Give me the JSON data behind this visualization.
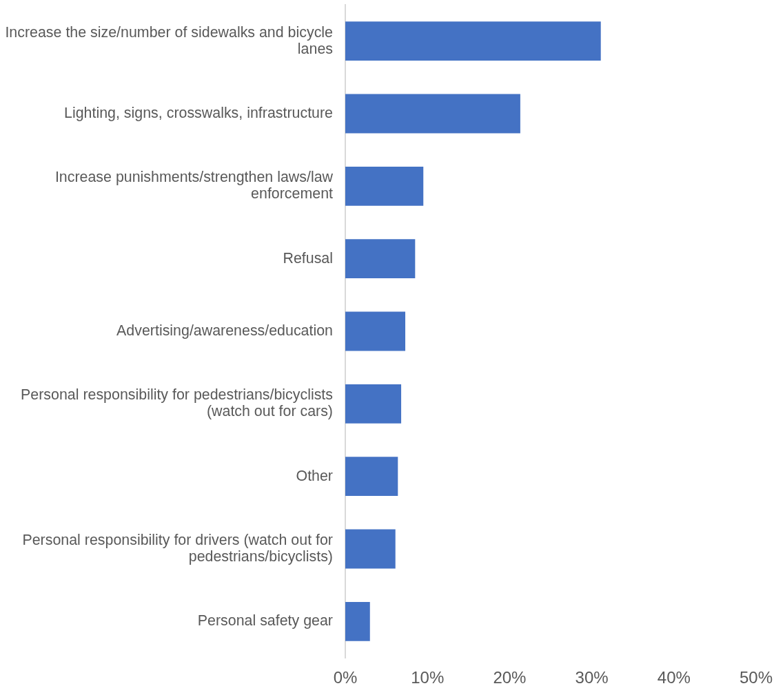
{
  "chart_data": {
    "type": "bar",
    "orientation": "horizontal",
    "categories": [
      "Increase the size/number of sidewalks and bicycle lanes",
      "Lighting, signs, crosswalks, infrastructure",
      "Increase punishments/strengthen laws/law enforcement",
      "Refusal",
      "Advertising/awareness/education",
      "Personal responsibility for pedestrians/bicyclists (watch out for cars)",
      "Other",
      "Personal responsibility for drivers (watch out for pedestrians/bicyclists)",
      "Personal safety gear"
    ],
    "values": [
      31.1,
      21.3,
      9.5,
      8.5,
      7.3,
      6.8,
      6.4,
      6.1,
      3.0
    ],
    "color": "#4472c4",
    "xlim": [
      0,
      50
    ],
    "xticks": [
      {
        "value": 0,
        "label": "0%"
      },
      {
        "value": 10,
        "label": "10%"
      },
      {
        "value": 20,
        "label": "20%"
      },
      {
        "value": 30,
        "label": "30%"
      },
      {
        "value": 40,
        "label": "40%"
      },
      {
        "value": 50,
        "label": "50%"
      }
    ],
    "grid": false,
    "legend": false
  }
}
